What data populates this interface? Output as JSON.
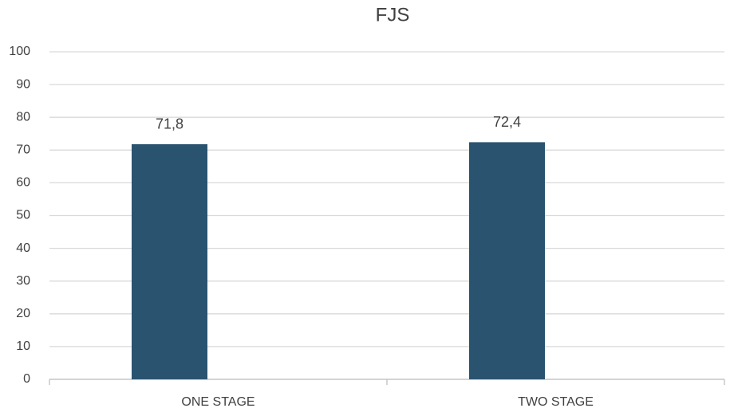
{
  "chart_data": {
    "type": "bar",
    "title": "FJS",
    "categories": [
      "ONE STAGE",
      "TWO STAGE"
    ],
    "values": [
      71.8,
      72.4
    ],
    "value_labels": [
      "71,8",
      "72,4"
    ],
    "color": "#2a5370",
    "ylim": [
      0,
      100
    ],
    "yticks": [
      0,
      10,
      20,
      30,
      40,
      50,
      60,
      70,
      80,
      90,
      100
    ],
    "grid": true
  }
}
